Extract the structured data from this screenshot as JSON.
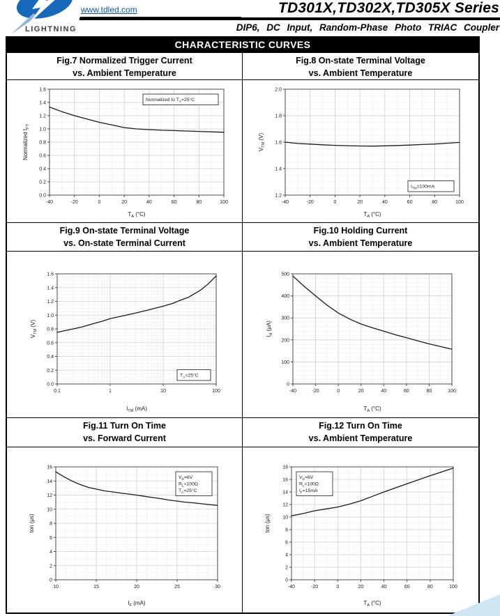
{
  "header": {
    "brand": "LIGHTNING",
    "url": "www.tdled.com",
    "title": "TD301X,TD302X,TD305X Series",
    "subtitle": "DIP6, DC Input, Random-Phase Photo TRIAC Coupler",
    "logo_icon": "lightning-bolt-icon",
    "colors": {
      "link_blue": "#1353a8",
      "logo_blue": "#1668b8",
      "corner_triangle": "#cfe7f4"
    }
  },
  "section_title": "CHARACTERISTIC CURVES",
  "chart_data": [
    {
      "type": "line",
      "fig": "Fig.7",
      "title_line1": "Fig.7 Normalized Trigger Current",
      "title_line2": "vs. Ambient Temperature",
      "xlabel": "T_A_ (°C)",
      "ylabel": "Normalized I_FT_",
      "xscale": "linear",
      "xlim": [
        -40,
        100
      ],
      "ylim": [
        0,
        1.6
      ],
      "xticks": [
        -40,
        -20,
        0,
        20,
        40,
        60,
        80,
        100
      ],
      "xtick_labels": [
        "-40",
        "-20",
        "0",
        "20",
        "40",
        "60",
        "80",
        "100"
      ],
      "yticks": [
        0,
        0.2,
        0.4,
        0.6,
        0.8,
        1.0,
        1.2,
        1.4,
        1.6
      ],
      "ytick_labels": [
        "0.0",
        "0.2",
        "0.4",
        "0.6",
        "0.8",
        "1.0",
        "1.2",
        "1.4",
        "1.6"
      ],
      "grid": true,
      "annotation": {
        "lines": [
          "Normalized to T_A_=25°C"
        ],
        "position": "top-right"
      },
      "points": [
        [
          -40,
          1.33
        ],
        [
          -30,
          1.26
        ],
        [
          -20,
          1.2
        ],
        [
          -10,
          1.15
        ],
        [
          0,
          1.1
        ],
        [
          10,
          1.06
        ],
        [
          20,
          1.02
        ],
        [
          30,
          1.0
        ],
        [
          40,
          0.99
        ],
        [
          50,
          0.98
        ],
        [
          60,
          0.975
        ],
        [
          70,
          0.968
        ],
        [
          80,
          0.962
        ],
        [
          90,
          0.956
        ],
        [
          100,
          0.95
        ]
      ]
    },
    {
      "type": "line",
      "fig": "Fig.8",
      "title_line1": "Fig.8 On-state Terminal Voltage",
      "title_line2": "vs. Ambient Temperature",
      "xlabel": "T_A_ (°C)",
      "ylabel": "V_TM_ (V)",
      "xscale": "linear",
      "xlim": [
        -40,
        100
      ],
      "ylim": [
        1.2,
        2.0
      ],
      "xticks": [
        -40,
        -20,
        0,
        20,
        40,
        60,
        80,
        100
      ],
      "xtick_labels": [
        "-40",
        "-20",
        "0",
        "20",
        "40",
        "60",
        "80",
        "100"
      ],
      "yticks": [
        1.2,
        1.4,
        1.6,
        1.8,
        2.0
      ],
      "ytick_labels": [
        "1.2",
        "1.4",
        "1.6",
        "1.8",
        "2.0"
      ],
      "grid": true,
      "annotation": {
        "lines": [
          "I_TM_=100mA"
        ],
        "position": "bottom-right"
      },
      "points": [
        [
          -40,
          1.6
        ],
        [
          -30,
          1.59
        ],
        [
          -20,
          1.585
        ],
        [
          -10,
          1.58
        ],
        [
          0,
          1.576
        ],
        [
          10,
          1.573
        ],
        [
          20,
          1.571
        ],
        [
          30,
          1.57
        ],
        [
          40,
          1.572
        ],
        [
          50,
          1.575
        ],
        [
          60,
          1.578
        ],
        [
          70,
          1.582
        ],
        [
          80,
          1.586
        ],
        [
          90,
          1.592
        ],
        [
          100,
          1.598
        ]
      ]
    },
    {
      "type": "line",
      "fig": "Fig.9",
      "title_line1": "Fig.9 On-state Terminal Voltage",
      "title_line2": "vs. On-state Terminal Current",
      "xlabel": "I_TM_ (mA)",
      "ylabel": "V_TM_ (V)",
      "xscale": "log",
      "xlim": [
        0.1,
        100
      ],
      "ylim": [
        0,
        1.6
      ],
      "xticks": [
        0.1,
        1,
        10,
        100
      ],
      "xtick_labels": [
        "0.1",
        "1",
        "10",
        "100"
      ],
      "yticks": [
        0,
        0.2,
        0.4,
        0.6,
        0.8,
        1.0,
        1.2,
        1.4,
        1.6
      ],
      "ytick_labels": [
        "0.0",
        "0.2",
        "0.4",
        "0.6",
        "0.8",
        "1.0",
        "1.2",
        "1.4",
        "1.6"
      ],
      "grid": true,
      "annotation": {
        "lines": [
          "T_A_=25°C"
        ],
        "position": "bottom-right"
      },
      "points": [
        [
          0.1,
          0.75
        ],
        [
          0.2,
          0.8
        ],
        [
          0.3,
          0.83
        ],
        [
          0.5,
          0.88
        ],
        [
          0.7,
          0.91
        ],
        [
          1,
          0.95
        ],
        [
          2,
          1.0
        ],
        [
          3,
          1.03
        ],
        [
          5,
          1.07
        ],
        [
          7,
          1.1
        ],
        [
          10,
          1.13
        ],
        [
          15,
          1.17
        ],
        [
          20,
          1.21
        ],
        [
          30,
          1.26
        ],
        [
          50,
          1.36
        ],
        [
          70,
          1.45
        ],
        [
          100,
          1.57
        ]
      ]
    },
    {
      "type": "line",
      "fig": "Fig.10",
      "title_line1": "Fig.10 Holding Current",
      "title_line2": "vs. Ambient Temperature",
      "xlabel": "T_A_ (°C)",
      "ylabel": "I_H_ (μA)",
      "xscale": "linear",
      "xlim": [
        -40,
        100
      ],
      "ylim": [
        0,
        500
      ],
      "xticks": [
        -40,
        -20,
        0,
        20,
        40,
        60,
        80,
        100
      ],
      "xtick_labels": [
        "-40",
        "-20",
        "0",
        "20",
        "40",
        "60",
        "80",
        "100"
      ],
      "yticks": [
        0,
        100,
        200,
        300,
        400,
        500
      ],
      "ytick_labels": [
        "0",
        "100",
        "200",
        "300",
        "400",
        "500"
      ],
      "grid": true,
      "annotation": null,
      "points": [
        [
          -40,
          490
        ],
        [
          -30,
          443
        ],
        [
          -20,
          400
        ],
        [
          -10,
          358
        ],
        [
          0,
          322
        ],
        [
          10,
          295
        ],
        [
          20,
          272
        ],
        [
          30,
          255
        ],
        [
          40,
          240
        ],
        [
          50,
          224
        ],
        [
          60,
          210
        ],
        [
          70,
          196
        ],
        [
          80,
          182
        ],
        [
          90,
          170
        ],
        [
          100,
          158
        ]
      ]
    },
    {
      "type": "line",
      "fig": "Fig.11",
      "title_line1": "Fig.11 Turn On Time",
      "title_line2": "vs. Forward Current",
      "xlabel": "I_F_ (mA)",
      "ylabel": "ton (μs)",
      "xscale": "linear",
      "xlim": [
        10,
        30
      ],
      "ylim": [
        0,
        16
      ],
      "xticks": [
        10,
        15,
        20,
        25,
        30
      ],
      "xtick_labels": [
        "10",
        "15",
        "20",
        "25",
        "30"
      ],
      "yticks": [
        0,
        2,
        4,
        6,
        8,
        10,
        12,
        14,
        16
      ],
      "ytick_labels": [
        "0",
        "2",
        "4",
        "6",
        "8",
        "10",
        "12",
        "14",
        "16"
      ],
      "grid": true,
      "annotation": {
        "lines": [
          "V_D_=6V",
          "R_L_=100Ω",
          "T_A_=25°C"
        ],
        "position": "top-right"
      },
      "points": [
        [
          10,
          15.3
        ],
        [
          11,
          14.6
        ],
        [
          12,
          14.0
        ],
        [
          13,
          13.5
        ],
        [
          14,
          13.1
        ],
        [
          15,
          12.85
        ],
        [
          16,
          12.6
        ],
        [
          17,
          12.45
        ],
        [
          18,
          12.3
        ],
        [
          19,
          12.15
        ],
        [
          20,
          12.0
        ],
        [
          21,
          11.82
        ],
        [
          22,
          11.65
        ],
        [
          23,
          11.5
        ],
        [
          24,
          11.3
        ],
        [
          25,
          11.15
        ],
        [
          26,
          11.0
        ],
        [
          27,
          10.9
        ],
        [
          28,
          10.78
        ],
        [
          29,
          10.65
        ],
        [
          30,
          10.55
        ]
      ]
    },
    {
      "type": "line",
      "fig": "Fig.12",
      "title_line1": "Fig.12 Turn On Time",
      "title_line2": "vs. Ambient Temperature",
      "xlabel": "T_A_ (°C)",
      "ylabel": "ton (μs)",
      "xscale": "linear",
      "xlim": [
        -40,
        100
      ],
      "ylim": [
        0,
        18
      ],
      "xticks": [
        -40,
        -20,
        0,
        20,
        40,
        60,
        80,
        100
      ],
      "xtick_labels": [
        "-40",
        "-20",
        "0",
        "20",
        "40",
        "60",
        "80",
        "100"
      ],
      "yticks": [
        0,
        2,
        4,
        6,
        8,
        10,
        12,
        14,
        16,
        18
      ],
      "ytick_labels": [
        "0",
        "2",
        "4",
        "6",
        "8",
        "10",
        "12",
        "14",
        "16",
        "18"
      ],
      "grid": true,
      "annotation": {
        "lines": [
          "V_D_=6V",
          "R_L_=100Ω",
          "I_F_=15mA"
        ],
        "position": "top-left"
      },
      "points": [
        [
          -40,
          10.2
        ],
        [
          -30,
          10.55
        ],
        [
          -20,
          11.0
        ],
        [
          -10,
          11.3
        ],
        [
          0,
          11.6
        ],
        [
          10,
          12.05
        ],
        [
          20,
          12.6
        ],
        [
          30,
          13.3
        ],
        [
          40,
          14.0
        ],
        [
          50,
          14.65
        ],
        [
          60,
          15.3
        ],
        [
          70,
          15.95
        ],
        [
          80,
          16.6
        ],
        [
          90,
          17.2
        ],
        [
          100,
          17.8
        ]
      ]
    }
  ]
}
